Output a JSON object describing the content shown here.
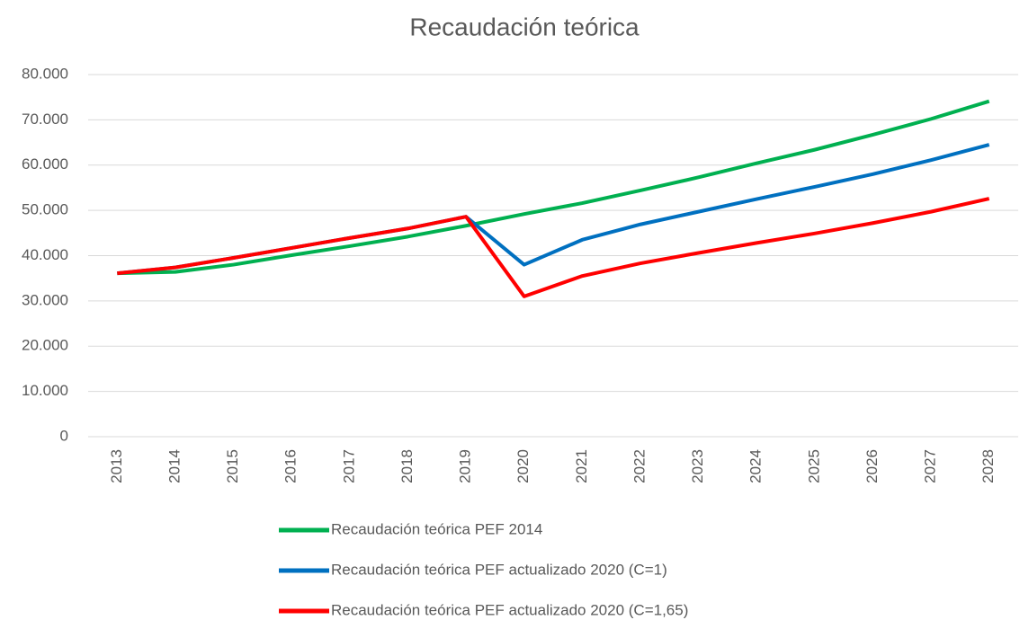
{
  "chart_data": {
    "type": "line",
    "title": "Recaudación teórica",
    "categories": [
      "2013",
      "2014",
      "2015",
      "2016",
      "2017",
      "2018",
      "2019",
      "2020",
      "2021",
      "2022",
      "2023",
      "2024",
      "2025",
      "2026",
      "2027",
      "2028"
    ],
    "series": [
      {
        "name": "Recaudación teórica PEF 2014",
        "color": "#00b050",
        "values": [
          36100,
          36400,
          38000,
          40100,
          42100,
          44200,
          46600,
          49200,
          51600,
          54400,
          57300,
          60400,
          63400,
          66700,
          70200,
          74100
        ]
      },
      {
        "name": "Recaudación teórica PEF actualizado 2020 (C=1)",
        "color": "#0070c0",
        "values": [
          36100,
          37400,
          39500,
          41700,
          43900,
          46000,
          48600,
          38000,
          43500,
          46900,
          49700,
          52500,
          55200,
          58000,
          61100,
          64500
        ]
      },
      {
        "name": "Recaudación teórica PEF actualizado 2020 (C=1,65)",
        "color": "#ff0000",
        "values": [
          36100,
          37400,
          39500,
          41700,
          43900,
          46000,
          48600,
          31000,
          35500,
          38300,
          40600,
          42800,
          44900,
          47200,
          49700,
          52600
        ]
      }
    ],
    "ylim": [
      0,
      80000
    ],
    "yticks": [
      0,
      {
        "value": 10000,
        "label": "10.000"
      },
      {
        "value": 20000,
        "label": "20.000"
      },
      {
        "value": 30000,
        "label": "30.000"
      },
      {
        "value": 40000,
        "label": "40.000"
      },
      {
        "value": 50000,
        "label": "50.000"
      },
      {
        "value": 60000,
        "label": "60.000"
      },
      {
        "value": 70000,
        "label": "70.000"
      },
      {
        "value": 80000,
        "label": "80.000"
      }
    ],
    "grid": true
  }
}
